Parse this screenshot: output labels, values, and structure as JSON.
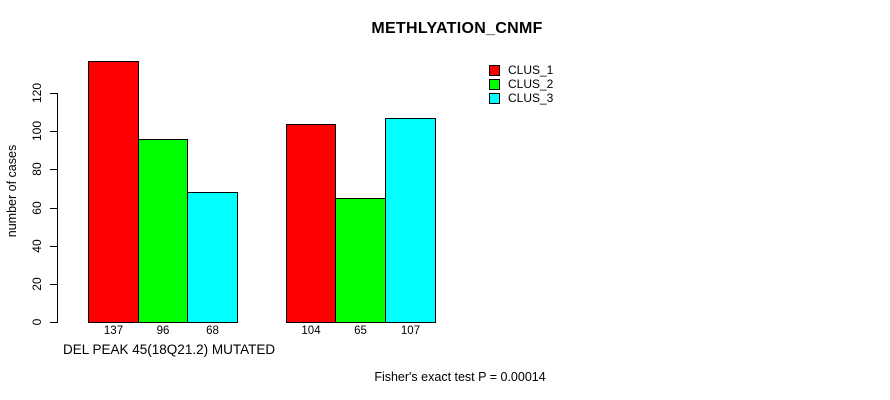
{
  "chart_data": {
    "type": "bar",
    "title": "METHLYATION_CNMF",
    "ylabel": "number of cases",
    "xlabel": "DEL PEAK 45(18Q21.2) MUTATED",
    "annotation": "Fisher's exact test P = 0.00014",
    "ylim": [
      0,
      120
    ],
    "yticks": [
      0,
      20,
      40,
      60,
      80,
      100,
      120
    ],
    "grid": false,
    "legend_position": "top-right",
    "legend": [
      "CLUS_1",
      "CLUS_2",
      "CLUS_3"
    ],
    "colors": [
      "#ff0000",
      "#00ff00",
      "#00ffff"
    ],
    "categories": [
      "DEL PEAK 45(18Q21.2) MUTATED",
      ""
    ],
    "series": [
      {
        "name": "CLUS_1",
        "values": [
          137,
          104
        ]
      },
      {
        "name": "CLUS_2",
        "values": [
          96,
          65
        ]
      },
      {
        "name": "CLUS_3",
        "values": [
          68,
          107
        ]
      }
    ]
  }
}
